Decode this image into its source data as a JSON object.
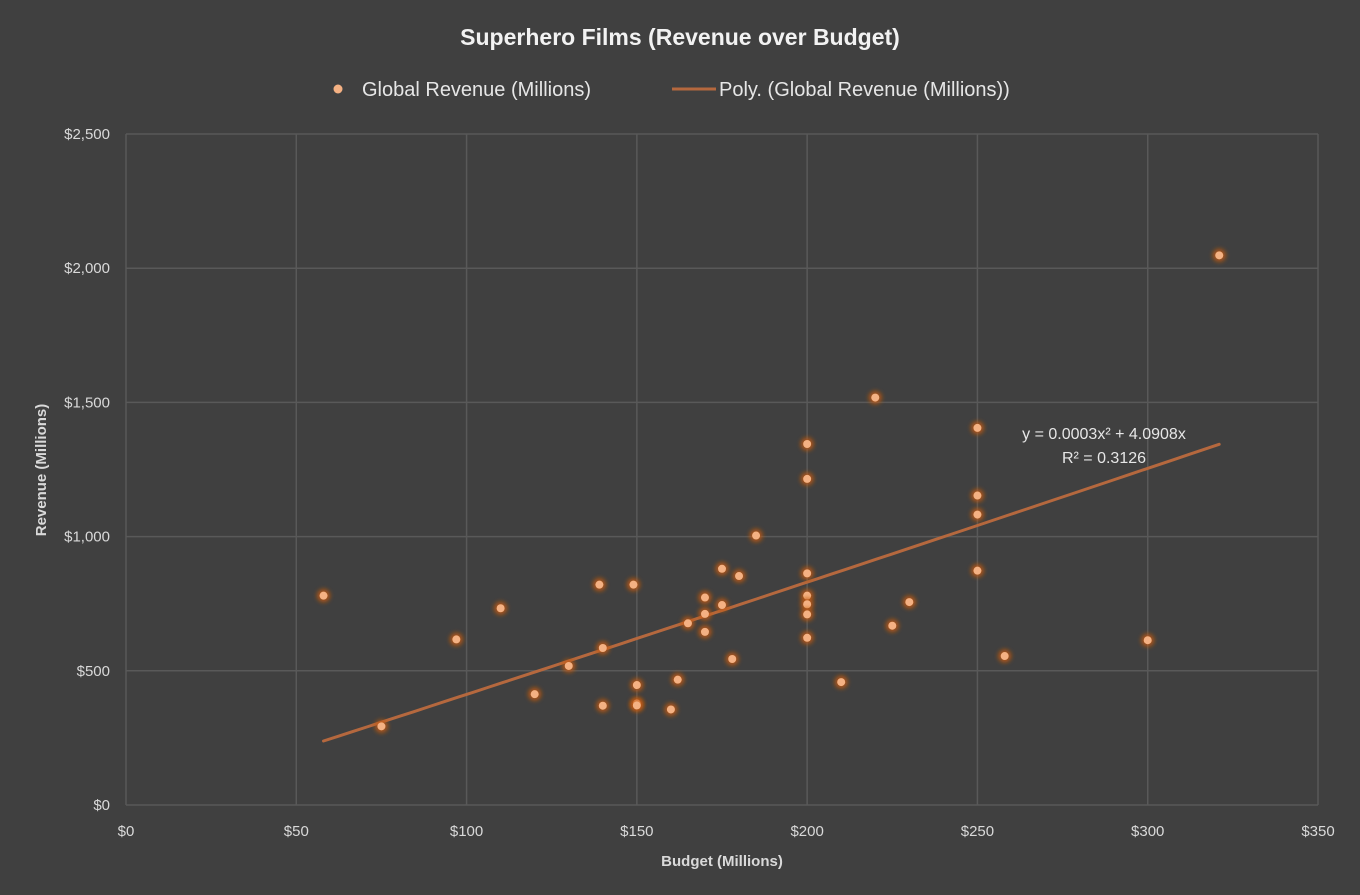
{
  "chart_data": {
    "type": "scatter",
    "title": "Superhero Films (Revenue over Budget)",
    "xlabel": "Budget (Millions)",
    "ylabel": "Revenue (Millions)",
    "xlim": [
      0,
      350
    ],
    "ylim": [
      0,
      2500
    ],
    "x_ticks": [
      0,
      50,
      100,
      150,
      200,
      250,
      300,
      350
    ],
    "y_ticks": [
      0,
      500,
      1000,
      1500,
      2000,
      2500
    ],
    "x_tick_labels": [
      "$0",
      "$50",
      "$100",
      "$150",
      "$200",
      "$250",
      "$300",
      "$350"
    ],
    "y_tick_labels": [
      "$0",
      "$500",
      "$1,000",
      "$1,500",
      "$2,000",
      "$2,500"
    ],
    "grid": true,
    "legend_position": "top",
    "colors": {
      "background": "#404040",
      "gridline": "#595959",
      "point": "#f4b183",
      "point_glow": "#c55a11",
      "trend": "#b5683e"
    },
    "series": [
      {
        "name": "Global Revenue (Millions)",
        "points": [
          [
            58,
            780
          ],
          [
            75,
            293
          ],
          [
            97,
            617
          ],
          [
            110,
            733
          ],
          [
            120,
            413
          ],
          [
            130,
            518
          ],
          [
            139,
            821
          ],
          [
            140,
            370
          ],
          [
            140,
            585
          ],
          [
            149,
            821
          ],
          [
            150,
            447
          ],
          [
            150,
            378
          ],
          [
            150,
            371
          ],
          [
            160,
            356
          ],
          [
            162,
            467
          ],
          [
            165,
            677
          ],
          [
            170,
            773
          ],
          [
            170,
            712
          ],
          [
            170,
            645
          ],
          [
            175,
            880
          ],
          [
            175,
            745
          ],
          [
            178,
            544
          ],
          [
            180,
            853
          ],
          [
            185,
            1004
          ],
          [
            200,
            1345
          ],
          [
            200,
            1215
          ],
          [
            200,
            863
          ],
          [
            200,
            780
          ],
          [
            200,
            748
          ],
          [
            200,
            710
          ],
          [
            200,
            623
          ],
          [
            210,
            458
          ],
          [
            220,
            1518
          ],
          [
            225,
            668
          ],
          [
            230,
            756
          ],
          [
            250,
            1405
          ],
          [
            250,
            1153
          ],
          [
            250,
            1082
          ],
          [
            250,
            873
          ],
          [
            258,
            555
          ],
          [
            300,
            614
          ],
          [
            321,
            2048
          ]
        ]
      }
    ],
    "trendline": {
      "name": "Poly. (Global Revenue (Millions))",
      "type": "polynomial",
      "coefficients": {
        "a": 0.0003,
        "b": 4.0908,
        "c": 0
      },
      "x_range": [
        58,
        321
      ],
      "equation": "y = 0.0003x² + 4.0908x",
      "r_squared": "R² = 0.3126"
    }
  }
}
